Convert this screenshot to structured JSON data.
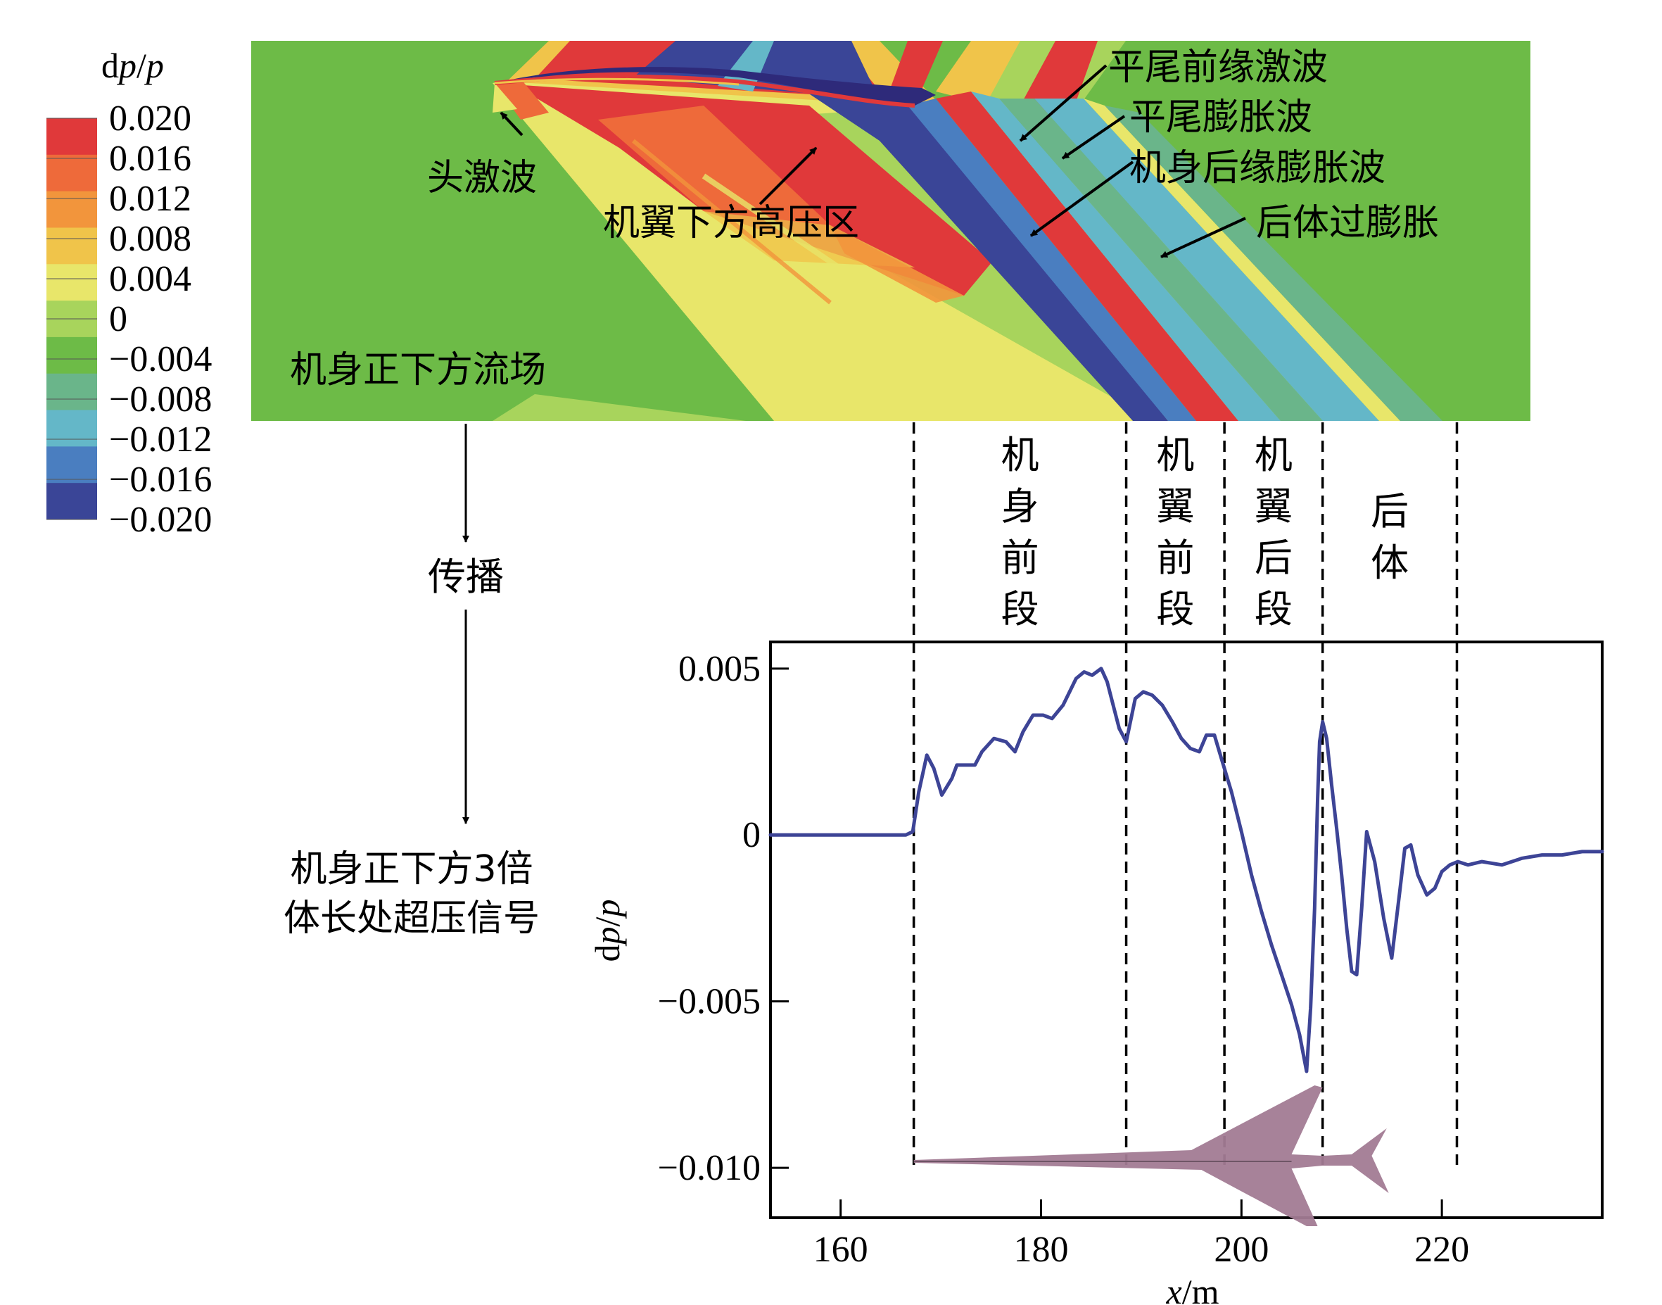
{
  "colorbar": {
    "title_d": "d",
    "title_p1": "p",
    "title_slash": "/",
    "title_p2": "p",
    "labels": [
      "0.020",
      "0.016",
      "0.012",
      "0.008",
      "0.004",
      "0",
      "−0.004",
      "−0.008",
      "−0.012",
      "−0.016",
      "−0.020"
    ],
    "colors": [
      "#e0393a",
      "#ee6a3a",
      "#f2953c",
      "#f0c44a",
      "#e8e66a",
      "#a8d45c",
      "#6dbb47",
      "#6ab58a",
      "#64b7c8",
      "#4a7ec0",
      "#3a4597"
    ]
  },
  "flowfield": {
    "labels": {
      "head_shock": "头激波",
      "wing_high_pressure": "机翼下方高压区",
      "tail_leading_shock": "平尾前缘激波",
      "tail_expansion": "平尾膨胀波",
      "fuselage_trailing_expansion": "机身后缘膨胀波",
      "aft_overexpansion": "后体过膨胀",
      "region": "机身正下方流场"
    }
  },
  "propagation": {
    "label": "传播",
    "signal_line1": "机身正下方3倍",
    "signal_line2": "体长处超压信号"
  },
  "segments": [
    {
      "chars": [
        "机",
        "身",
        "前",
        "段"
      ]
    },
    {
      "chars": [
        "机",
        "翼",
        "前",
        "段"
      ]
    },
    {
      "chars": [
        "机",
        "翼",
        "后",
        "段"
      ]
    },
    {
      "chars": [
        "后",
        "体"
      ]
    }
  ],
  "chart_data": {
    "type": "line",
    "title": "",
    "xlabel_x": "x",
    "xlabel_unit": "/m",
    "ylabel_d": "d",
    "ylabel_p1": "p",
    "ylabel_slash": "/",
    "ylabel_p2": "p",
    "xlim": [
      153,
      236
    ],
    "ylim": [
      -0.0115,
      0.0058
    ],
    "xticks": [
      160,
      180,
      200,
      220
    ],
    "xtick_labels": [
      "160",
      "180",
      "200",
      "220"
    ],
    "yticks": [
      0.005,
      0,
      -0.005,
      -0.01
    ],
    "ytick_labels": [
      "0.005",
      "0",
      "−0.005",
      "−0.010"
    ],
    "segment_boundaries_x": [
      167.3,
      188.5,
      198.3,
      208.1,
      221.5
    ],
    "line_color": "#3d4496",
    "aircraft_color": "#a27b93",
    "series": [
      {
        "x": [
          153,
          160,
          166.5,
          167.2,
          167.8,
          168.6,
          169.3,
          170.1,
          171.1,
          171.6,
          172.4,
          173.4,
          174.1,
          175.3,
          176.5,
          177.4,
          178.2,
          179.2,
          180.2,
          181.1,
          182.2,
          183.5,
          184.3,
          185.1,
          186.0,
          186.6,
          187.2,
          187.8,
          188.5,
          189.4,
          190.2,
          191.1,
          192.1,
          193.1,
          194.0,
          194.9,
          195.8,
          196.5,
          197.3,
          198.0,
          199.0,
          200.0,
          201.0,
          202.0,
          203.0,
          204.0,
          205.0,
          205.8,
          206.5,
          206.9,
          207.3,
          207.6,
          207.8,
          208.1,
          208.5,
          209.0,
          209.5,
          210.0,
          210.5,
          211.0,
          211.5,
          212.0,
          212.5,
          213.3,
          214.2,
          215.0,
          215.8,
          216.3,
          216.9,
          217.6,
          218.5,
          219.3,
          220.0,
          220.8,
          221.6,
          222.6,
          224.0,
          226.0,
          228.0,
          230.0,
          232.0,
          234.0,
          236.0
        ],
        "values": [
          0,
          0,
          0,
          0.0001,
          0.0013,
          0.0024,
          0.002,
          0.0012,
          0.0017,
          0.0021,
          0.0021,
          0.0021,
          0.0025,
          0.0029,
          0.0028,
          0.0025,
          0.0031,
          0.0036,
          0.0036,
          0.0035,
          0.0039,
          0.0047,
          0.0049,
          0.0048,
          0.005,
          0.0046,
          0.0039,
          0.0032,
          0.0028,
          0.0041,
          0.0043,
          0.0042,
          0.0039,
          0.0034,
          0.0029,
          0.0026,
          0.0025,
          0.003,
          0.003,
          0.0023,
          0.0013,
          0.0001,
          -0.0012,
          -0.0023,
          -0.0033,
          -0.0042,
          -0.0051,
          -0.006,
          -0.0071,
          -0.0052,
          -0.0022,
          0.0011,
          0.0028,
          0.0034,
          0.0029,
          0.0015,
          0.0002,
          -0.0012,
          -0.0028,
          -0.0041,
          -0.0042,
          -0.0022,
          0.0001,
          -0.0008,
          -0.0025,
          -0.0037,
          -0.0017,
          -0.0004,
          -0.0003,
          -0.0012,
          -0.0018,
          -0.0016,
          -0.0011,
          -0.0009,
          -0.0008,
          -0.0009,
          -0.0008,
          -0.0009,
          -0.0007,
          -0.0006,
          -0.0006,
          -0.0005,
          -0.0005
        ]
      }
    ]
  }
}
